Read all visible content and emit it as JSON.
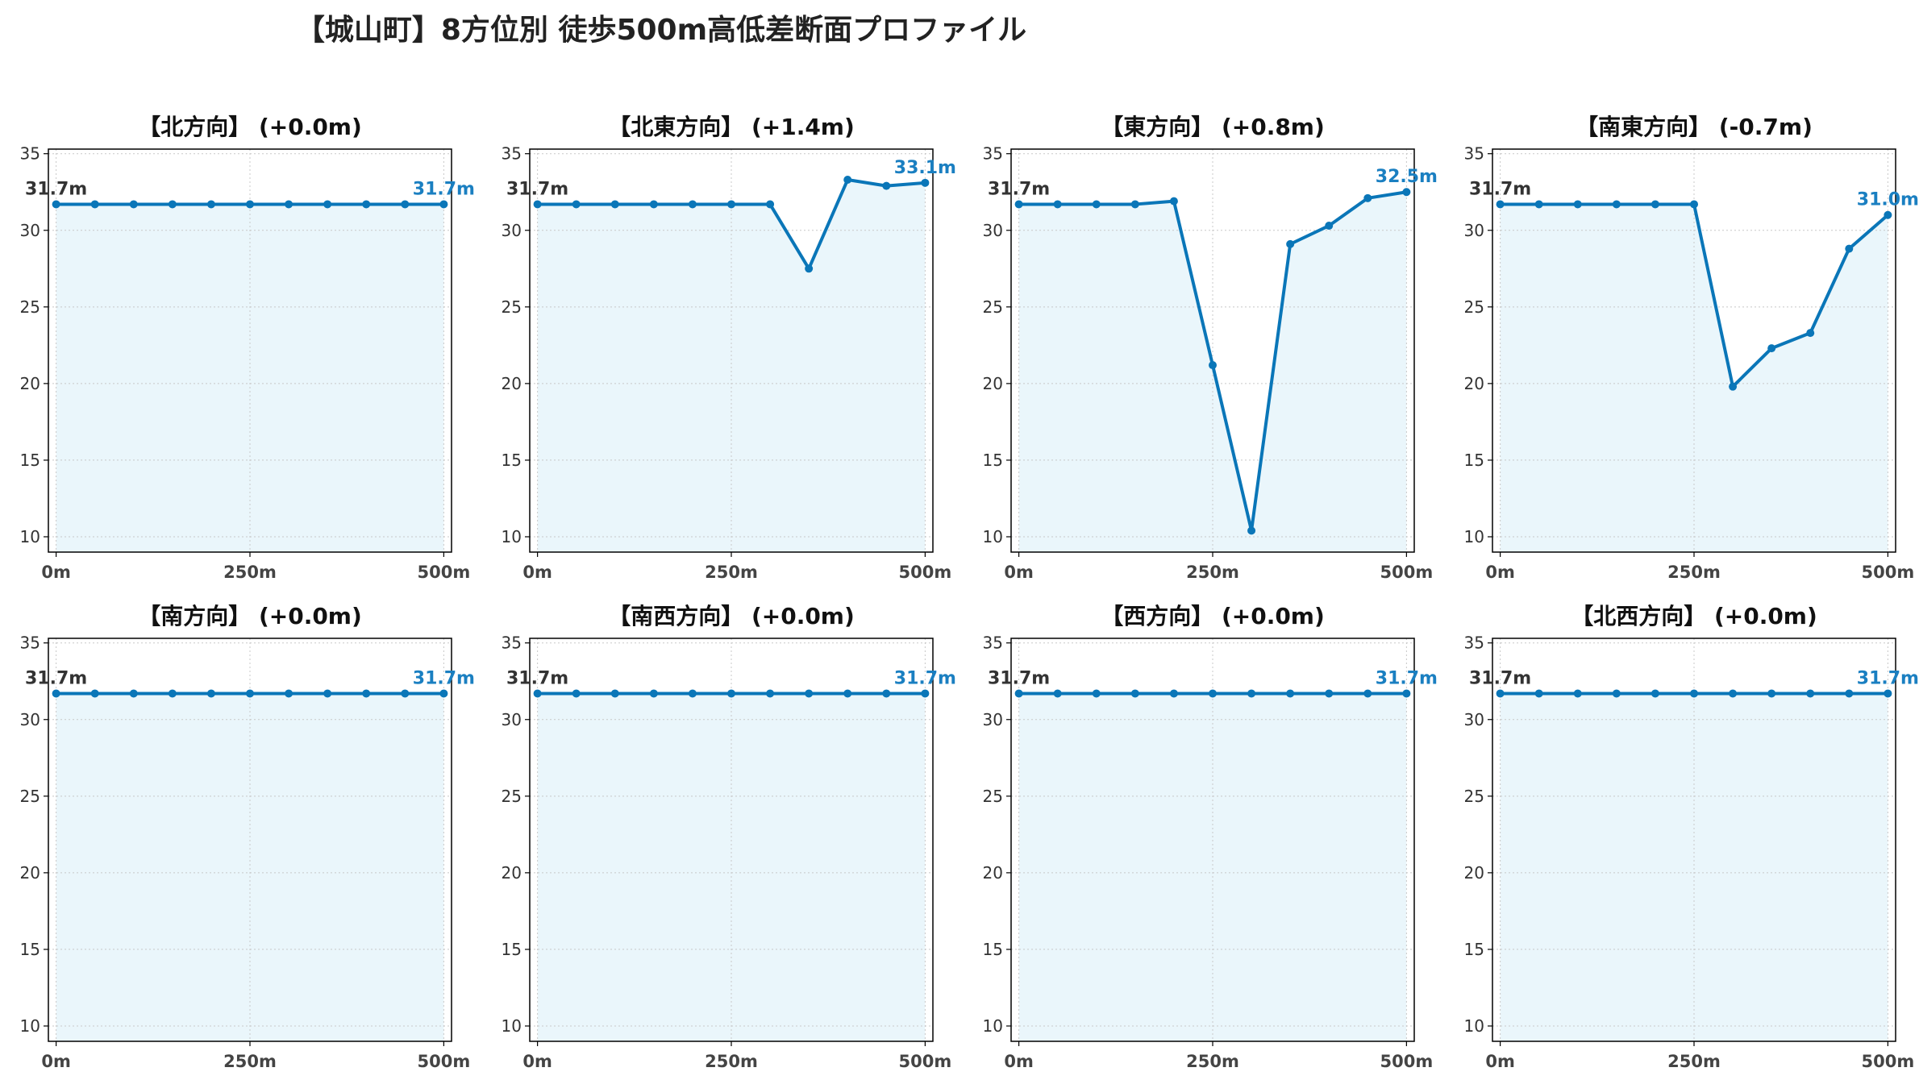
{
  "title": "【城山町】8方位別 徒歩500m高低差断面プロファイル",
  "colors": {
    "line": "#0a76b8",
    "fill": "#eaf6fb",
    "grid": "#c8c8c8",
    "start_label": "#333333",
    "end_label": "#1a7fc1"
  },
  "chart_data": [
    {
      "type": "line",
      "title": "【北方向】 (+0.0m)",
      "x": [
        0,
        50,
        100,
        150,
        200,
        250,
        300,
        350,
        400,
        450,
        500
      ],
      "values": [
        31.7,
        31.7,
        31.7,
        31.7,
        31.7,
        31.7,
        31.7,
        31.7,
        31.7,
        31.7,
        31.7
      ],
      "xticks": [
        "0m",
        "250m",
        "500m"
      ],
      "yticks": [
        10,
        15,
        20,
        25,
        30,
        35
      ],
      "ylim": [
        9,
        35.3
      ],
      "xlim": [
        -10,
        510
      ],
      "grid": true,
      "start_label": "31.7m",
      "end_label": "31.7m"
    },
    {
      "type": "line",
      "title": "【北東方向】 (+1.4m)",
      "x": [
        0,
        50,
        100,
        150,
        200,
        250,
        300,
        350,
        400,
        450,
        500
      ],
      "values": [
        31.7,
        31.7,
        31.7,
        31.7,
        31.7,
        31.7,
        31.7,
        27.5,
        33.3,
        32.9,
        33.1
      ],
      "xticks": [
        "0m",
        "250m",
        "500m"
      ],
      "yticks": [
        10,
        15,
        20,
        25,
        30,
        35
      ],
      "ylim": [
        9,
        35.3
      ],
      "xlim": [
        -10,
        510
      ],
      "grid": true,
      "start_label": "31.7m",
      "end_label": "33.1m"
    },
    {
      "type": "line",
      "title": "【東方向】 (+0.8m)",
      "x": [
        0,
        50,
        100,
        150,
        200,
        250,
        300,
        350,
        400,
        450,
        500
      ],
      "values": [
        31.7,
        31.7,
        31.7,
        31.7,
        31.9,
        21.2,
        10.4,
        29.1,
        30.3,
        32.1,
        32.5
      ],
      "xticks": [
        "0m",
        "250m",
        "500m"
      ],
      "yticks": [
        10,
        15,
        20,
        25,
        30,
        35
      ],
      "ylim": [
        9,
        35.3
      ],
      "xlim": [
        -10,
        510
      ],
      "grid": true,
      "start_label": "31.7m",
      "end_label": "32.5m"
    },
    {
      "type": "line",
      "title": "【南東方向】 (-0.7m)",
      "x": [
        0,
        50,
        100,
        150,
        200,
        250,
        300,
        350,
        400,
        450,
        500
      ],
      "values": [
        31.7,
        31.7,
        31.7,
        31.7,
        31.7,
        31.7,
        19.8,
        22.3,
        23.3,
        28.8,
        31.0
      ],
      "xticks": [
        "0m",
        "250m",
        "500m"
      ],
      "yticks": [
        10,
        15,
        20,
        25,
        30,
        35
      ],
      "ylim": [
        9,
        35.3
      ],
      "xlim": [
        -10,
        510
      ],
      "grid": true,
      "start_label": "31.7m",
      "end_label": "31.0m"
    },
    {
      "type": "line",
      "title": "【南方向】 (+0.0m)",
      "x": [
        0,
        50,
        100,
        150,
        200,
        250,
        300,
        350,
        400,
        450,
        500
      ],
      "values": [
        31.7,
        31.7,
        31.7,
        31.7,
        31.7,
        31.7,
        31.7,
        31.7,
        31.7,
        31.7,
        31.7
      ],
      "xticks": [
        "0m",
        "250m",
        "500m"
      ],
      "yticks": [
        10,
        15,
        20,
        25,
        30,
        35
      ],
      "ylim": [
        9,
        35.3
      ],
      "xlim": [
        -10,
        510
      ],
      "grid": true,
      "start_label": "31.7m",
      "end_label": "31.7m"
    },
    {
      "type": "line",
      "title": "【南西方向】 (+0.0m)",
      "x": [
        0,
        50,
        100,
        150,
        200,
        250,
        300,
        350,
        400,
        450,
        500
      ],
      "values": [
        31.7,
        31.7,
        31.7,
        31.7,
        31.7,
        31.7,
        31.7,
        31.7,
        31.7,
        31.7,
        31.7
      ],
      "xticks": [
        "0m",
        "250m",
        "500m"
      ],
      "yticks": [
        10,
        15,
        20,
        25,
        30,
        35
      ],
      "ylim": [
        9,
        35.3
      ],
      "xlim": [
        -10,
        510
      ],
      "grid": true,
      "start_label": "31.7m",
      "end_label": "31.7m"
    },
    {
      "type": "line",
      "title": "【西方向】 (+0.0m)",
      "x": [
        0,
        50,
        100,
        150,
        200,
        250,
        300,
        350,
        400,
        450,
        500
      ],
      "values": [
        31.7,
        31.7,
        31.7,
        31.7,
        31.7,
        31.7,
        31.7,
        31.7,
        31.7,
        31.7,
        31.7
      ],
      "xticks": [
        "0m",
        "250m",
        "500m"
      ],
      "yticks": [
        10,
        15,
        20,
        25,
        30,
        35
      ],
      "ylim": [
        9,
        35.3
      ],
      "xlim": [
        -10,
        510
      ],
      "grid": true,
      "start_label": "31.7m",
      "end_label": "31.7m"
    },
    {
      "type": "line",
      "title": "【北西方向】 (+0.0m)",
      "x": [
        0,
        50,
        100,
        150,
        200,
        250,
        300,
        350,
        400,
        450,
        500
      ],
      "values": [
        31.7,
        31.7,
        31.7,
        31.7,
        31.7,
        31.7,
        31.7,
        31.7,
        31.7,
        31.7,
        31.7
      ],
      "xticks": [
        "0m",
        "250m",
        "500m"
      ],
      "yticks": [
        10,
        15,
        20,
        25,
        30,
        35
      ],
      "ylim": [
        9,
        35.3
      ],
      "xlim": [
        -10,
        510
      ],
      "grid": true,
      "start_label": "31.7m",
      "end_label": "31.7m"
    }
  ]
}
